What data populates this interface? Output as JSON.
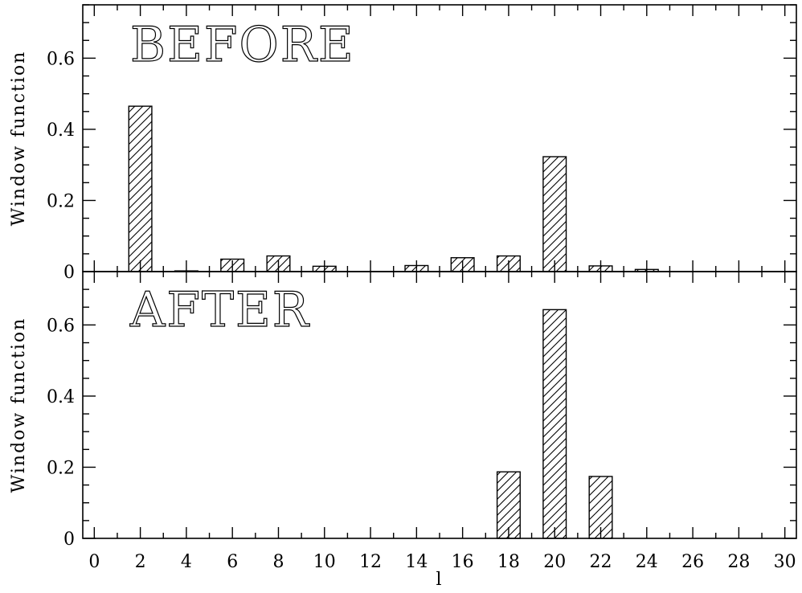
{
  "chart_data": [
    {
      "type": "bar",
      "title": "BEFORE",
      "ylabel": "Window function",
      "xlabel": "",
      "xlim": [
        -0.5,
        30.5
      ],
      "ylim": [
        0,
        0.75
      ],
      "yticks": [
        0,
        0.2,
        0.4,
        0.6
      ],
      "ytick_labels": [
        "0",
        "0.2",
        "0.4",
        "0.6"
      ],
      "bar_width": 1.0,
      "x": [
        2,
        4,
        6,
        8,
        10,
        14,
        16,
        18,
        20,
        22,
        24
      ],
      "values": [
        0.465,
        0.002,
        0.035,
        0.044,
        0.015,
        0.017,
        0.039,
        0.044,
        0.323,
        0.016,
        0.006
      ],
      "grid": false,
      "fill": "hatched"
    },
    {
      "type": "bar",
      "title": "AFTER",
      "ylabel": "Window function",
      "xlabel": "l",
      "xlim": [
        -0.5,
        30.5
      ],
      "ylim": [
        0,
        0.75
      ],
      "yticks": [
        0,
        0.2,
        0.4,
        0.6
      ],
      "ytick_labels": [
        "0",
        "0.2",
        "0.4",
        "0.6"
      ],
      "xticks": [
        0,
        2,
        4,
        6,
        8,
        10,
        12,
        14,
        16,
        18,
        20,
        22,
        24,
        26,
        28,
        30
      ],
      "xtick_labels": [
        "0",
        "2",
        "4",
        "6",
        "8",
        "10",
        "12",
        "14",
        "16",
        "18",
        "20",
        "22",
        "24",
        "26",
        "28",
        "30"
      ],
      "bar_width": 1.0,
      "x": [
        18,
        20,
        22
      ],
      "values": [
        0.187,
        0.643,
        0.174
      ],
      "grid": false,
      "fill": "hatched"
    }
  ]
}
